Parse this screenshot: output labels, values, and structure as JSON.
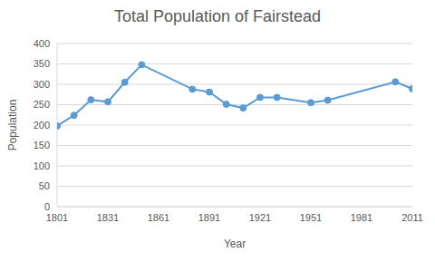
{
  "chart_data": {
    "type": "line",
    "title": "Total Population of Fairstead",
    "x_label": "Year",
    "y_label": "Population",
    "x": [
      1801,
      1811,
      1821,
      1831,
      1841,
      1851,
      1881,
      1891,
      1901,
      1911,
      1921,
      1931,
      1951,
      1961,
      2001,
      2011
    ],
    "values": [
      198,
      224,
      262,
      257,
      305,
      348,
      288,
      281,
      251,
      242,
      268,
      268,
      255,
      261,
      306,
      289
    ],
    "color": "#5b9bd5",
    "marker": "circle",
    "xlim": [
      1801,
      2011
    ],
    "xticks": [
      1801,
      1831,
      1861,
      1891,
      1921,
      1951,
      1981,
      2011
    ],
    "ylim": [
      0,
      400
    ],
    "yticks": [
      0,
      50,
      100,
      150,
      200,
      250,
      300,
      350,
      400
    ],
    "grid": true
  }
}
